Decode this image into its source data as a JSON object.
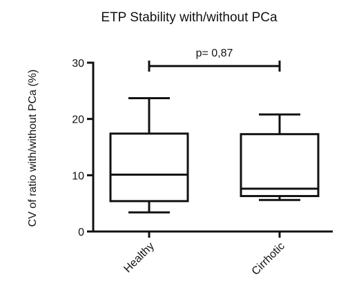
{
  "chart_data": {
    "type": "box",
    "title": "ETP Stability with/without PCa",
    "xlabel": "",
    "ylabel": "CV of ratio with/without PCa (%)",
    "ylim": [
      0,
      30
    ],
    "yticks": [
      0,
      10,
      20,
      30
    ],
    "categories": [
      "Healthy",
      "Cirrhotic"
    ],
    "boxes": [
      {
        "name": "Healthy",
        "whisker_low": 3.4,
        "q1": 5.4,
        "median": 10.1,
        "q3": 17.4,
        "whisker_high": 23.7
      },
      {
        "name": "Cirrhotic",
        "whisker_low": 5.6,
        "q1": 6.3,
        "median": 7.6,
        "q3": 17.3,
        "whisker_high": 20.8
      }
    ],
    "annotations": [
      {
        "text": "p= 0,87",
        "from": "Healthy",
        "to": "Cirrhotic",
        "y": 29.4
      }
    ],
    "grid": false,
    "legend": "none",
    "colors": {
      "stroke": "#111111",
      "background": "#ffffff"
    }
  }
}
